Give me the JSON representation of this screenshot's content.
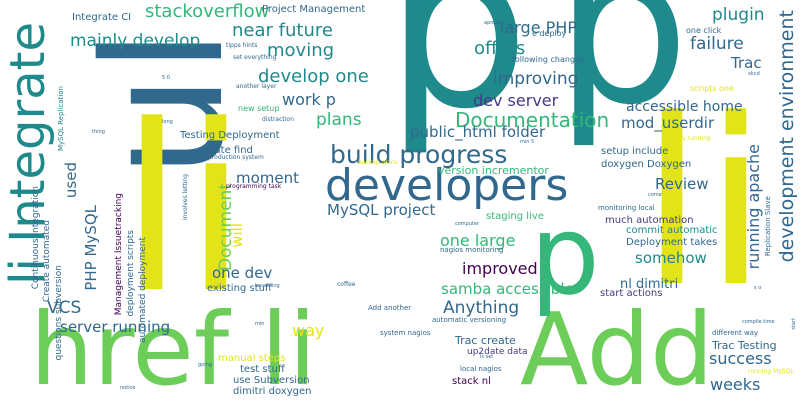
{
  "colors": {
    "background": "#ffffff",
    "teal": "#1f8a8c",
    "green": "#35b779",
    "lightgreen": "#6dcd59",
    "yellow": "#e2e418",
    "blue": "#31688e",
    "navy": "#443a83",
    "purple": "#440154"
  },
  "words": [
    {
      "text": "p"
    },
    {
      "text": "p"
    },
    {
      "text": "ul"
    },
    {
      "text": "li"
    },
    {
      "text": "li"
    },
    {
      "text": "li Integrate"
    },
    {
      "text": "href li"
    },
    {
      "text": "Add"
    },
    {
      "text": "p"
    },
    {
      "text": "developers"
    },
    {
      "text": "build progress"
    },
    {
      "text": "Documentation"
    },
    {
      "text": "development environment"
    },
    {
      "text": "stackoverflow"
    },
    {
      "text": "mainly develop"
    },
    {
      "text": "near future"
    },
    {
      "text": "moving"
    },
    {
      "text": "develop one"
    },
    {
      "text": "work p"
    },
    {
      "text": "plans"
    },
    {
      "text": "offers"
    },
    {
      "text": "large PHP"
    },
    {
      "text": "plugin"
    },
    {
      "text": "failure"
    },
    {
      "text": "Trac"
    },
    {
      "text": "improving"
    },
    {
      "text": "dev server"
    },
    {
      "text": "accessible home"
    },
    {
      "text": "mod_userdir"
    },
    {
      "text": "public_html folder"
    },
    {
      "text": "Review"
    },
    {
      "text": "running apache"
    },
    {
      "text": "moment"
    },
    {
      "text": "MySQL project"
    },
    {
      "text": "one large"
    },
    {
      "text": "improved"
    },
    {
      "text": "somehow"
    },
    {
      "text": "one dev"
    },
    {
      "text": "samba accessible"
    },
    {
      "text": "Anything"
    },
    {
      "text": "server running"
    },
    {
      "text": "way"
    },
    {
      "text": "success"
    },
    {
      "text": "weeks"
    },
    {
      "text": "VCS"
    },
    {
      "text": "PHP MySQL"
    },
    {
      "text": "used"
    },
    {
      "text": "Document"
    },
    {
      "text": "will"
    },
    {
      "text": "Integrate CI"
    },
    {
      "text": "Project Management"
    },
    {
      "text": "Testing Deployment"
    },
    {
      "text": "create find"
    },
    {
      "text": "Deployment takes"
    },
    {
      "text": "commit automatic"
    },
    {
      "text": "much automation"
    },
    {
      "text": "nl dimitri"
    },
    {
      "text": "start actions"
    },
    {
      "text": "existing stuff"
    },
    {
      "text": "Trac create"
    },
    {
      "text": "Trac Testing"
    },
    {
      "text": "up2date data"
    },
    {
      "text": "stack nl"
    },
    {
      "text": "manual steps"
    },
    {
      "text": "test stuff"
    },
    {
      "text": "use Subversion"
    },
    {
      "text": "dimitri doxygen"
    },
    {
      "text": "Management Issuetracking"
    },
    {
      "text": "deployment scripts"
    },
    {
      "text": "automated deployment"
    },
    {
      "text": "Create automated"
    },
    {
      "text": "questions subversion"
    },
    {
      "text": "Continuous Integration"
    },
    {
      "text": "MySQL Replication"
    },
    {
      "text": "Replication Slave"
    },
    {
      "text": "version incrementor"
    },
    {
      "text": "staging live"
    },
    {
      "text": "setup include"
    },
    {
      "text": "doxygen Doxygen"
    },
    {
      "text": "monitoring local"
    },
    {
      "text": "nagios monitoring"
    },
    {
      "text": "automatic versioning"
    },
    {
      "text": "system nagios"
    },
    {
      "text": "local nagios"
    },
    {
      "text": "Add another"
    },
    {
      "text": "different way"
    },
    {
      "text": "running MySQL"
    },
    {
      "text": "compile time"
    },
    {
      "text": "e deploy"
    },
    {
      "text": "one click"
    },
    {
      "text": "following changes"
    },
    {
      "text": "scripts one"
    },
    {
      "text": "xkcd"
    },
    {
      "text": "tipps hints"
    },
    {
      "text": "set everything"
    },
    {
      "text": "another layer"
    },
    {
      "text": "new setup"
    },
    {
      "text": "distraction"
    },
    {
      "text": "production system"
    },
    {
      "text": "backup plans"
    },
    {
      "text": "programming task"
    },
    {
      "text": "involves letting"
    },
    {
      "text": "nightly running"
    },
    {
      "text": "min 5"
    },
    {
      "text": "computer"
    },
    {
      "text": "coffee"
    },
    {
      "text": "becoming"
    },
    {
      "text": "notice"
    },
    {
      "text": "going"
    },
    {
      "text": "min"
    },
    {
      "text": "start"
    },
    {
      "text": "come"
    },
    {
      "text": "apropos"
    },
    {
      "text": "long"
    },
    {
      "text": "thing"
    },
    {
      "text": "5 0"
    },
    {
      "text": "5 min"
    },
    {
      "text": "is set"
    },
    {
      "text": "s o"
    }
  ]
}
